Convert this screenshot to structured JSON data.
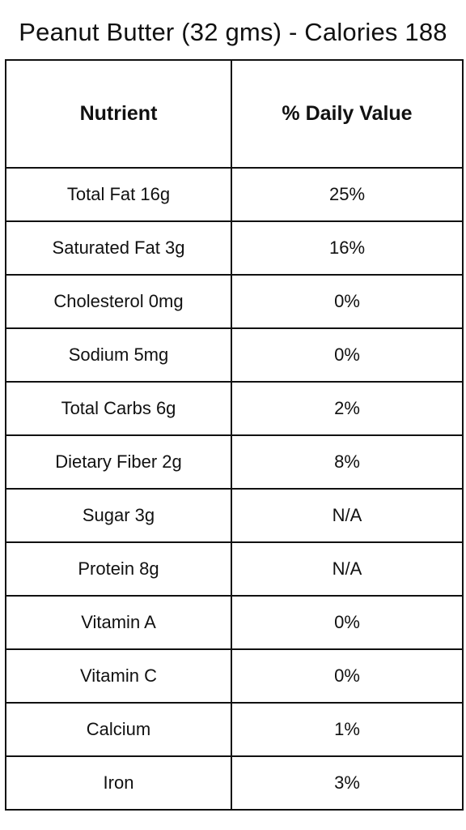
{
  "title": "Peanut Butter (32 gms) - Calories 188",
  "table": {
    "headers": [
      "Nutrient",
      "% Daily Value"
    ],
    "rows": [
      [
        "Total Fat 16g",
        "25%"
      ],
      [
        "Saturated Fat 3g",
        "16%"
      ],
      [
        "Cholesterol 0mg",
        "0%"
      ],
      [
        "Sodium 5mg",
        "0%"
      ],
      [
        "Total Carbs 6g",
        "2%"
      ],
      [
        "Dietary Fiber 2g",
        "8%"
      ],
      [
        "Sugar 3g",
        "N/A"
      ],
      [
        "Protein 8g",
        "N/A"
      ],
      [
        "Vitamin A",
        "0%"
      ],
      [
        "Vitamin C",
        "0%"
      ],
      [
        "Calcium",
        "1%"
      ],
      [
        "Iron",
        "3%"
      ]
    ]
  }
}
